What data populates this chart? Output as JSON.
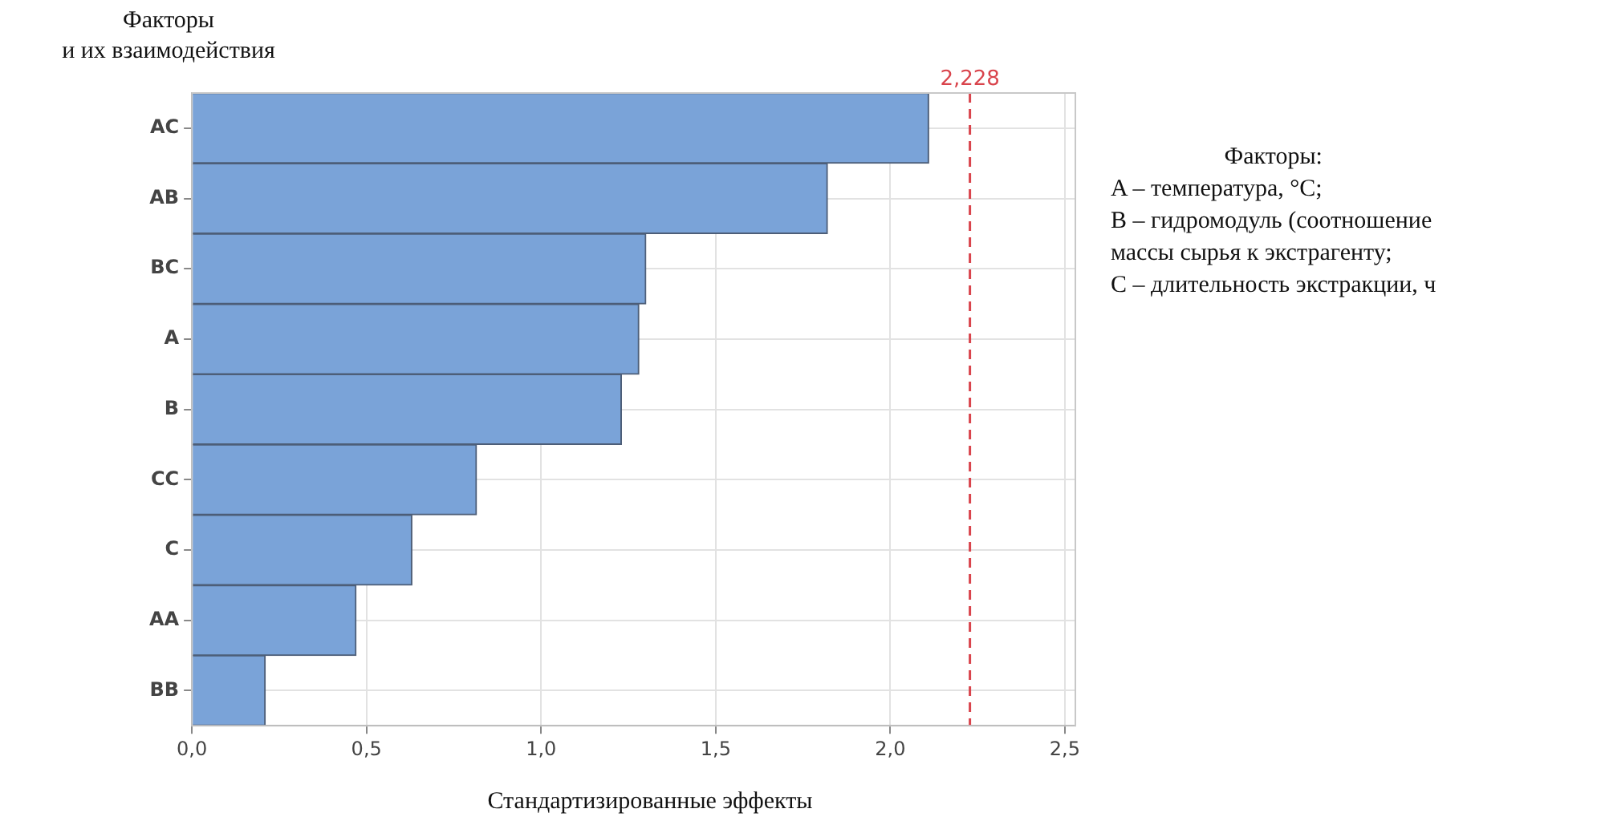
{
  "chart_data": {
    "type": "bar",
    "orientation": "horizontal",
    "ylabel": "Факторы\nи их взаимодействия",
    "xlabel": "Стандартизированные эффекты",
    "categories": [
      "AC",
      "AB",
      "BC",
      "A",
      "B",
      "CC",
      "C",
      "AA",
      "BB"
    ],
    "values": [
      2.11,
      1.82,
      1.3,
      1.28,
      1.23,
      0.815,
      0.63,
      0.47,
      0.21
    ],
    "color": "#7aa3d8",
    "xlim": [
      0,
      2.53
    ],
    "xticks": [
      {
        "value": 0,
        "label": "0,0"
      },
      {
        "value": 0.5,
        "label": "0,5"
      },
      {
        "value": 1,
        "label": "1,0"
      },
      {
        "value": 1.5,
        "label": "1,5"
      },
      {
        "value": 2,
        "label": "2,0"
      },
      {
        "value": 2.5,
        "label": "2,5"
      }
    ],
    "ref_lines": [
      {
        "axis": "x",
        "value": 2.228,
        "label": "2,228",
        "color": "#d9444c",
        "line_style": "dashed"
      }
    ],
    "grid": true,
    "legend": false,
    "annotations": [
      "Факторы:",
      "A – температура, °С;",
      "B – гидромодуль (соотношение",
      "массы сырья к экстрагенту;",
      "C – длительность экстракции, ч"
    ]
  }
}
